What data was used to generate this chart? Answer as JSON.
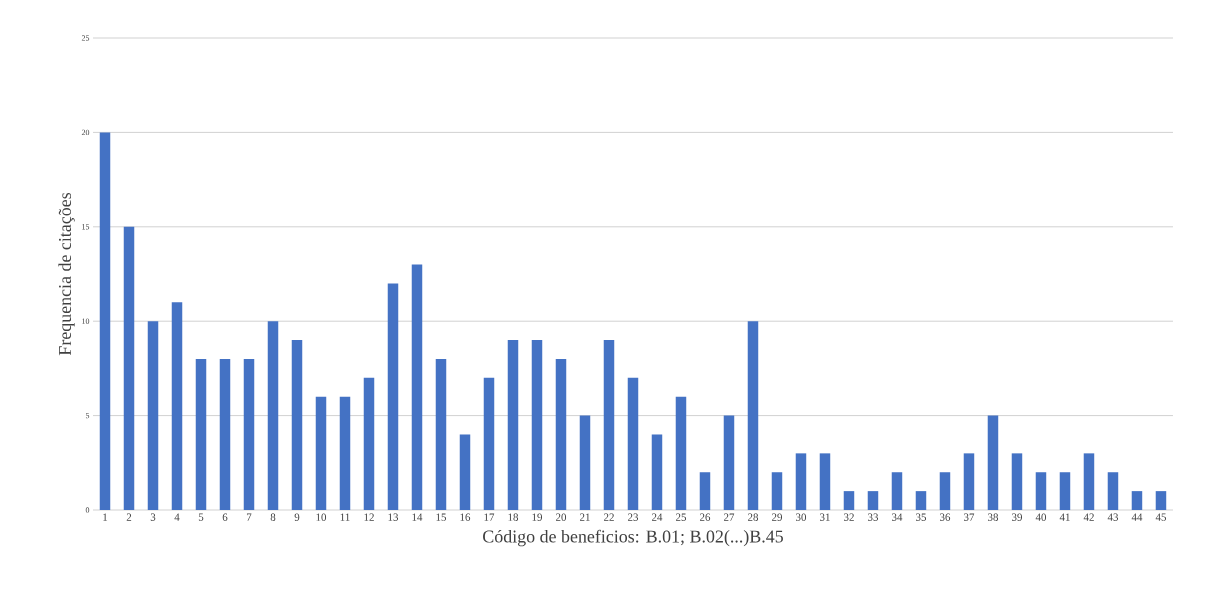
{
  "chart_data": {
    "type": "bar",
    "xlabel": "Código de beneficios: B.01; B.02(...)B.45",
    "ylabel": "Frequencia de citações",
    "categories": [
      "1",
      "2",
      "3",
      "4",
      "5",
      "6",
      "7",
      "8",
      "9",
      "10",
      "11",
      "12",
      "13",
      "14",
      "15",
      "16",
      "17",
      "18",
      "19",
      "20",
      "21",
      "22",
      "23",
      "24",
      "25",
      "26",
      "27",
      "28",
      "29",
      "30",
      "31",
      "32",
      "33",
      "34",
      "35",
      "36",
      "37",
      "38",
      "39",
      "40",
      "41",
      "42",
      "43",
      "44",
      "45"
    ],
    "values": [
      20,
      15,
      10,
      11,
      8,
      8,
      8,
      10,
      9,
      6,
      6,
      7,
      12,
      13,
      8,
      4,
      7,
      9,
      9,
      8,
      5,
      9,
      7,
      4,
      6,
      2,
      5,
      10,
      2,
      3,
      3,
      1,
      1,
      2,
      1,
      2,
      3,
      5,
      3,
      2,
      2,
      3,
      2,
      1,
      1
    ],
    "color": "#4472c4",
    "ylim": [
      0,
      25
    ],
    "yticks": [
      0,
      5,
      10,
      15,
      20,
      25
    ],
    "grid": "y"
  }
}
